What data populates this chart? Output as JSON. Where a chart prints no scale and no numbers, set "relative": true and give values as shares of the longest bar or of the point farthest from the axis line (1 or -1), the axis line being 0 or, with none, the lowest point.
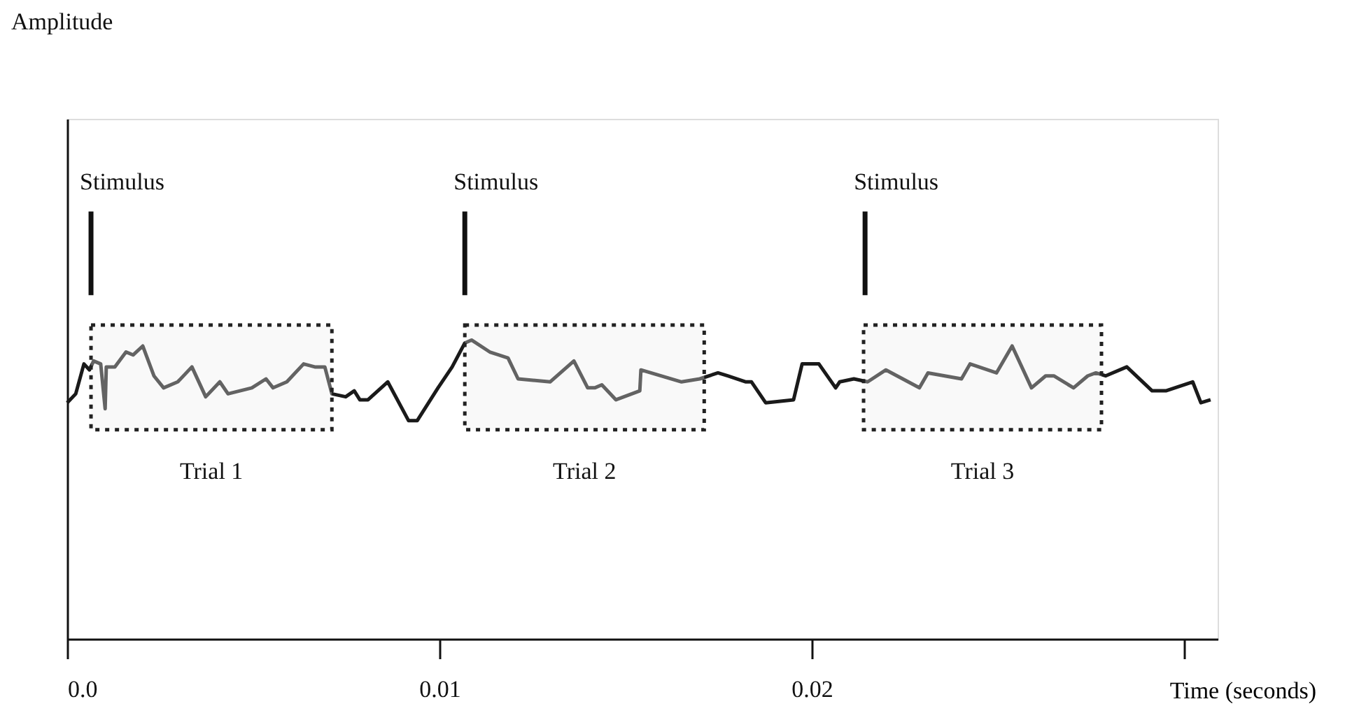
{
  "chart_data": {
    "type": "line",
    "relative": true,
    "xlabel": "Time (seconds)",
    "xlim": [
      0,
      0.0309
    ],
    "xticks": [
      {
        "value": 0,
        "label": "0.0"
      },
      0.01,
      0.02,
      {
        "value": 0.03,
        "label": null
      }
    ],
    "x": [
      0,
      0.00023,
      0.00045,
      0.0006,
      0.00071,
      0.0009,
      0.00102,
      0.00105,
      0.00128,
      0.00158,
      0.00177,
      0.00203,
      0.00233,
      0.00259,
      0.00297,
      0.00335,
      0.00372,
      0.0041,
      0.00432,
      0.00496,
      0.00534,
      0.00553,
      0.0059,
      0.00635,
      0.00665,
      0.00692,
      0.00711,
      0.00748,
      0.00771,
      0.00786,
      0.00808,
      0.00861,
      0.00917,
      0.0094,
      0.00996,
      0.01034,
      0.01068,
      0.01086,
      0.01135,
      0.01184,
      0.01211,
      0.01297,
      0.01361,
      0.01398,
      0.01417,
      0.01436,
      0.01474,
      0.01538,
      0.01541,
      0.0165,
      0.01699,
      0.01748,
      0.01774,
      0.01823,
      0.01838,
      0.01876,
      0.01951,
      0.01974,
      0.02019,
      0.02064,
      0.02075,
      0.02113,
      0.0215,
      0.02199,
      0.02289,
      0.02312,
      0.02402,
      0.02425,
      0.02496,
      0.02538,
      0.0259,
      0.02628,
      0.0265,
      0.02703,
      0.02741,
      0.02763,
      0.02789,
      0.02846,
      0.02914,
      0.02951,
      0.03023,
      0.03045,
      0.03071
    ],
    "series": [
      {
        "color": "#1a1a1a",
        "values": [
          0.79,
          0.82,
          0.92,
          0.9,
          0.93,
          0.92,
          0.77,
          0.91,
          0.91,
          0.96,
          0.95,
          0.98,
          0.88,
          0.84,
          0.86,
          0.91,
          0.81,
          0.86,
          0.82,
          0.84,
          0.87,
          0.84,
          0.86,
          0.92,
          0.91,
          0.91,
          0.82,
          0.81,
          0.83,
          0.8,
          0.8,
          0.86,
          0.73,
          0.73,
          0.84,
          0.91,
          0.99,
          1,
          0.96,
          0.94,
          0.87,
          0.86,
          0.93,
          0.84,
          0.84,
          0.85,
          0.8,
          0.83,
          0.9,
          0.86,
          0.87,
          0.89,
          0.88,
          0.86,
          0.86,
          0.79,
          0.8,
          0.92,
          0.92,
          0.84,
          0.86,
          0.87,
          0.86,
          0.9,
          0.84,
          0.89,
          0.87,
          0.92,
          0.89,
          0.98,
          0.84,
          0.88,
          0.88,
          0.84,
          0.88,
          0.89,
          0.88,
          0.91,
          0.83,
          0.83,
          0.86,
          0.79,
          0.8
        ]
      }
    ],
    "annotations": [
      "Amplitude"
    ],
    "ref_lines": [
      {
        "axis": "x",
        "value": 0.00064,
        "label": "Stimulus"
      },
      {
        "axis": "x",
        "value": 0.01068,
        "label": "Stimulus"
      },
      {
        "axis": "x",
        "value": 0.02143,
        "label": "Stimulus"
      }
    ],
    "bands": [
      {
        "axis": "x",
        "from": 0.00064,
        "to": 0.00711,
        "label": "Trial 1",
        "color": "#eeeeee"
      },
      {
        "axis": "x",
        "from": 0.01068,
        "to": 0.01711,
        "label": "Trial 2",
        "color": "#eeeeee"
      },
      {
        "axis": "x",
        "from": 0.02139,
        "to": 0.02778,
        "label": "Trial 3",
        "color": "#eeeeee"
      }
    ],
    "grid": false,
    "legend": false
  }
}
